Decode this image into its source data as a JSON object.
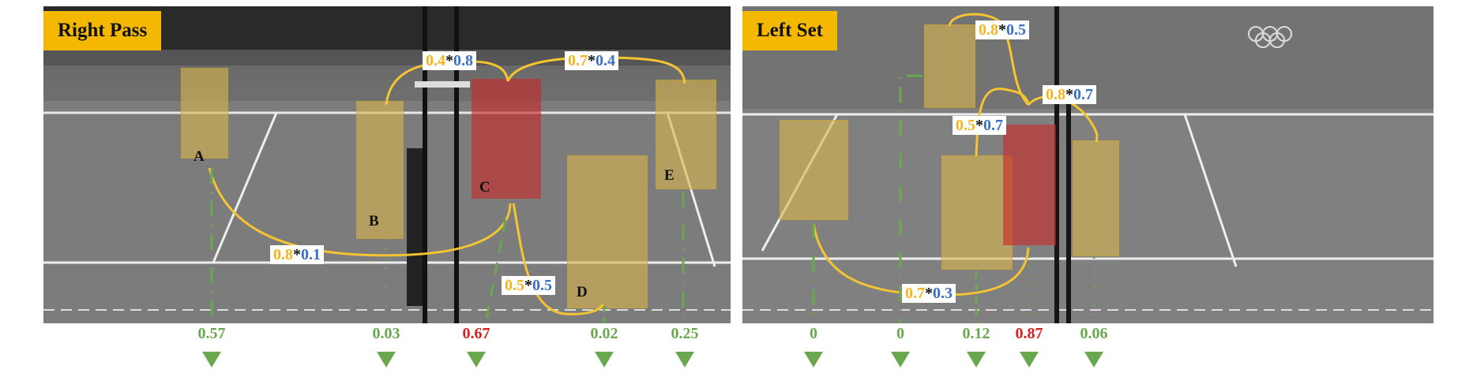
{
  "panels": [
    {
      "label": "Right Pass",
      "players": [
        "A",
        "B",
        "C",
        "D",
        "E"
      ],
      "edges": [
        {
          "a": "0.4",
          "b": "0.8"
        },
        {
          "a": "0.7",
          "b": "0.4"
        },
        {
          "a": "0.8",
          "b": "0.1"
        },
        {
          "a": "0.5",
          "b": "0.5"
        }
      ],
      "scores": [
        "0.57",
        "0.03",
        "0.67",
        "0.02",
        "0.25"
      ]
    },
    {
      "label": "Left Set",
      "edges": [
        {
          "a": "0.8",
          "b": "0.5"
        },
        {
          "a": "0.8",
          "b": "0.7"
        },
        {
          "a": "0.5",
          "b": "0.7"
        },
        {
          "a": "0.7",
          "b": "0.3"
        }
      ],
      "scores": [
        "0",
        "0",
        "0.12",
        "0.87",
        "0.06"
      ]
    }
  ],
  "colors": {
    "edge_yellow": "#f2b51c",
    "edge_blue": "#3a6fc4",
    "highlight_red": "#d62020",
    "green": "#6aa84f",
    "tag_bg": "#f5b800"
  }
}
